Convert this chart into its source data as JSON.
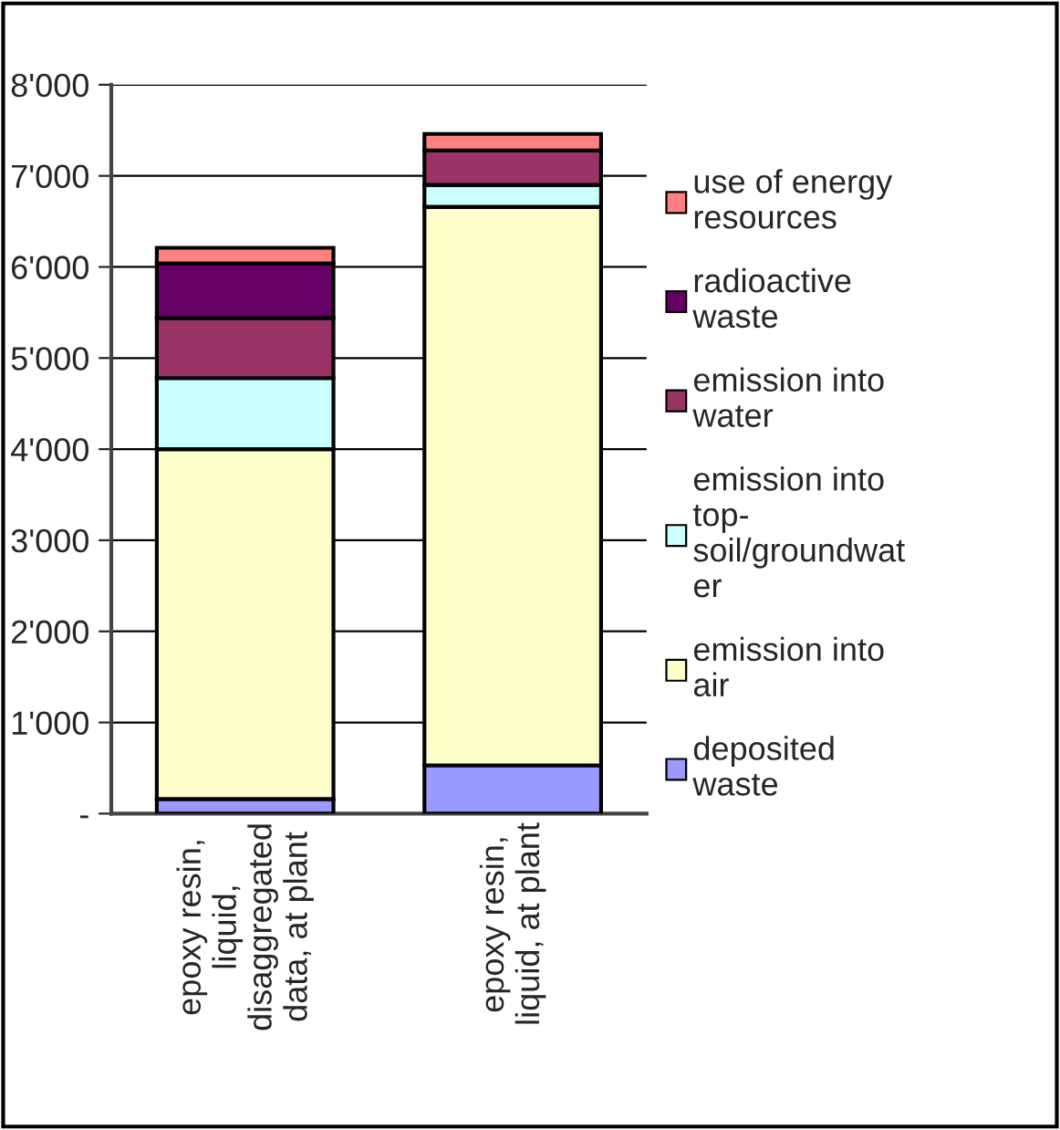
{
  "chart_data": {
    "type": "bar",
    "stacked": true,
    "categories": [
      "epoxy resin,\nliquid,\ndisaggregated\ndata, at plant",
      "epoxy resin,\nliquid, at plant"
    ],
    "series": [
      {
        "name": "deposited\nwaste",
        "color": "#9999ff",
        "values": [
          160,
          530
        ]
      },
      {
        "name": "emission into\nair",
        "color": "#ffffcc",
        "values": [
          3840,
          6130
        ]
      },
      {
        "name": "emission into\ntop-\nsoil/groundwat\ner",
        "color": "#ccffff",
        "values": [
          780,
          240
        ]
      },
      {
        "name": "emission into\nwater",
        "color": "#993366",
        "values": [
          660,
          380
        ]
      },
      {
        "name": "radioactive\nwaste",
        "color": "#660066",
        "values": [
          600,
          0
        ]
      },
      {
        "name": "use of energy\nresources",
        "color": "#ff8080",
        "values": [
          170,
          180
        ]
      }
    ],
    "ylim": [
      0,
      8000
    ],
    "yticks": [
      {
        "value": 0,
        "label": "-"
      },
      {
        "value": 1000,
        "label": "1'000"
      },
      {
        "value": 2000,
        "label": "2'000"
      },
      {
        "value": 3000,
        "label": "3'000"
      },
      {
        "value": 4000,
        "label": "4'000"
      },
      {
        "value": 5000,
        "label": "5'000"
      },
      {
        "value": 6000,
        "label": "6'000"
      },
      {
        "value": 7000,
        "label": "7'000"
      },
      {
        "value": 8000,
        "label": "8'000"
      }
    ],
    "grid": "y",
    "legend": "right"
  }
}
